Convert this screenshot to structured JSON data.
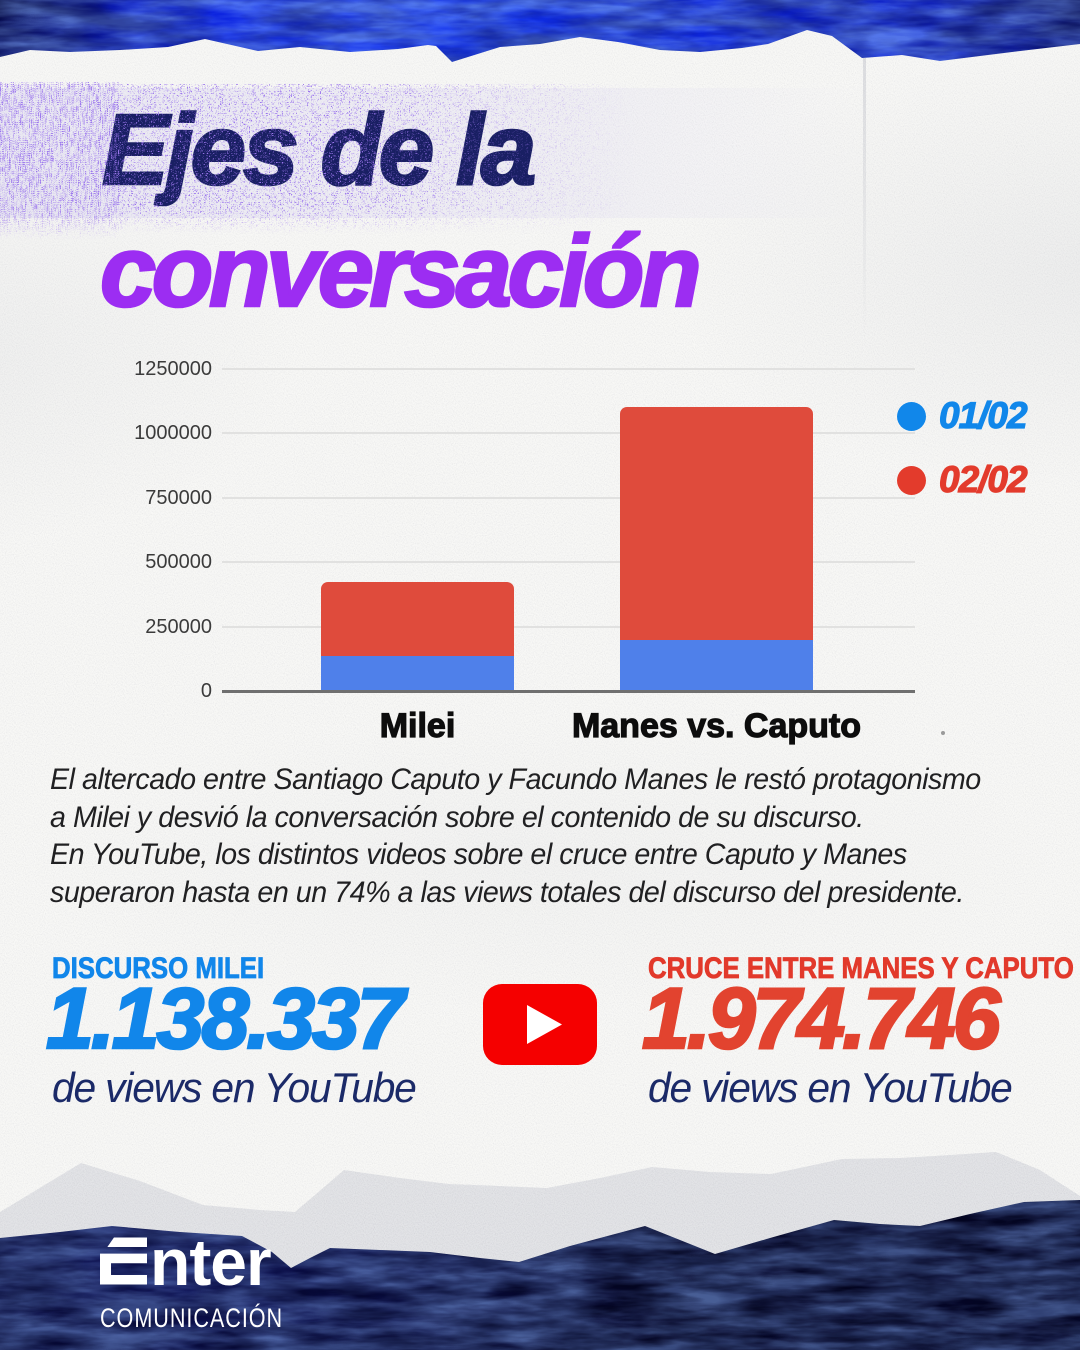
{
  "poster": {
    "title_line1": "Ejes de la",
    "title_line2": "conversación"
  },
  "chart_data": {
    "type": "bar",
    "stacked": true,
    "title": "",
    "xlabel": "",
    "ylabel": "",
    "categories": [
      "Milei",
      "Manes vs. Caputo"
    ],
    "series": [
      {
        "name": "01/02",
        "color": "#4f80ea",
        "legend_color": "#1187ea",
        "values": [
          135000,
          197000
        ]
      },
      {
        "name": "02/02",
        "color": "#df4b3c",
        "legend_color": "#e33b2c",
        "values": [
          290000,
          906000
        ]
      }
    ],
    "totals_estimated": [
      425000,
      1103000
    ],
    "ylim": [
      0,
      1250000
    ],
    "yticks": [
      0,
      250000,
      500000,
      750000,
      1000000,
      1250000
    ],
    "grid": true,
    "legend_position": "right"
  },
  "paragraph": {
    "lines": [
      "El altercado entre Santiago Caputo y Facundo Manes le restó protagonismo",
      "a Milei y desvió la conversación sobre el contenido de su discurso.",
      "En YouTube, los distintos videos sobre el cruce entre Caputo y Manes",
      "superaron hasta en un 74% a las views totales del discurso del presidente."
    ]
  },
  "stats": {
    "left": {
      "label": "DISCURSO MILEI",
      "value": "1.138.337",
      "caption": "de views en YouTube",
      "color": "#1186ea"
    },
    "right": {
      "label": "CRUCE ENTRE MANES Y CAPUTO",
      "value": "1.974.746",
      "caption": "de views en YouTube",
      "color": "#e2392b"
    }
  },
  "footer": {
    "brand": "Enter",
    "brand_word_rest": "nter",
    "brand_sub": "COMUNICACIÓN"
  },
  "colors": {
    "title_navy": "#191f63",
    "title_purple": "#9c2df2",
    "top_band_blue": "#0d24df",
    "bottom_band_navy": "#04062a",
    "torn_paper_gray": "#e3e4e7",
    "youtube_red": "#f50000",
    "caption_navy": "#1b2a68"
  }
}
